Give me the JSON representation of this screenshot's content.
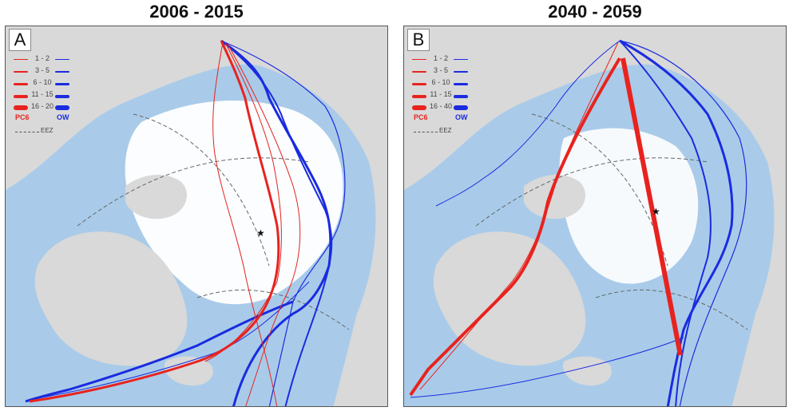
{
  "panels": [
    {
      "title": "2006 - 2015",
      "letter": "A",
      "legend": {
        "classes": [
          "1 - 2",
          "3 - 5",
          "6 - 10",
          "11 - 15",
          "16 - 20"
        ],
        "pc6_label": "PC6",
        "ow_label": "OW",
        "eez_label": "EEZ"
      }
    },
    {
      "title": "2040 - 2059",
      "letter": "B",
      "legend": {
        "classes": [
          "1 - 2",
          "3 - 5",
          "6 - 10",
          "11 - 15",
          "16 - 40"
        ],
        "pc6_label": "PC6",
        "ow_label": "OW",
        "eez_label": "EEZ"
      }
    }
  ],
  "colors": {
    "land": "#d9d9d9",
    "ocean": "#a9cbe9",
    "ice": "#ffffff",
    "pc6_route": "#e8231f",
    "ow_route": "#1a2be0",
    "eez_line": "#666666"
  },
  "icons": {
    "north_pole": "star-icon"
  }
}
